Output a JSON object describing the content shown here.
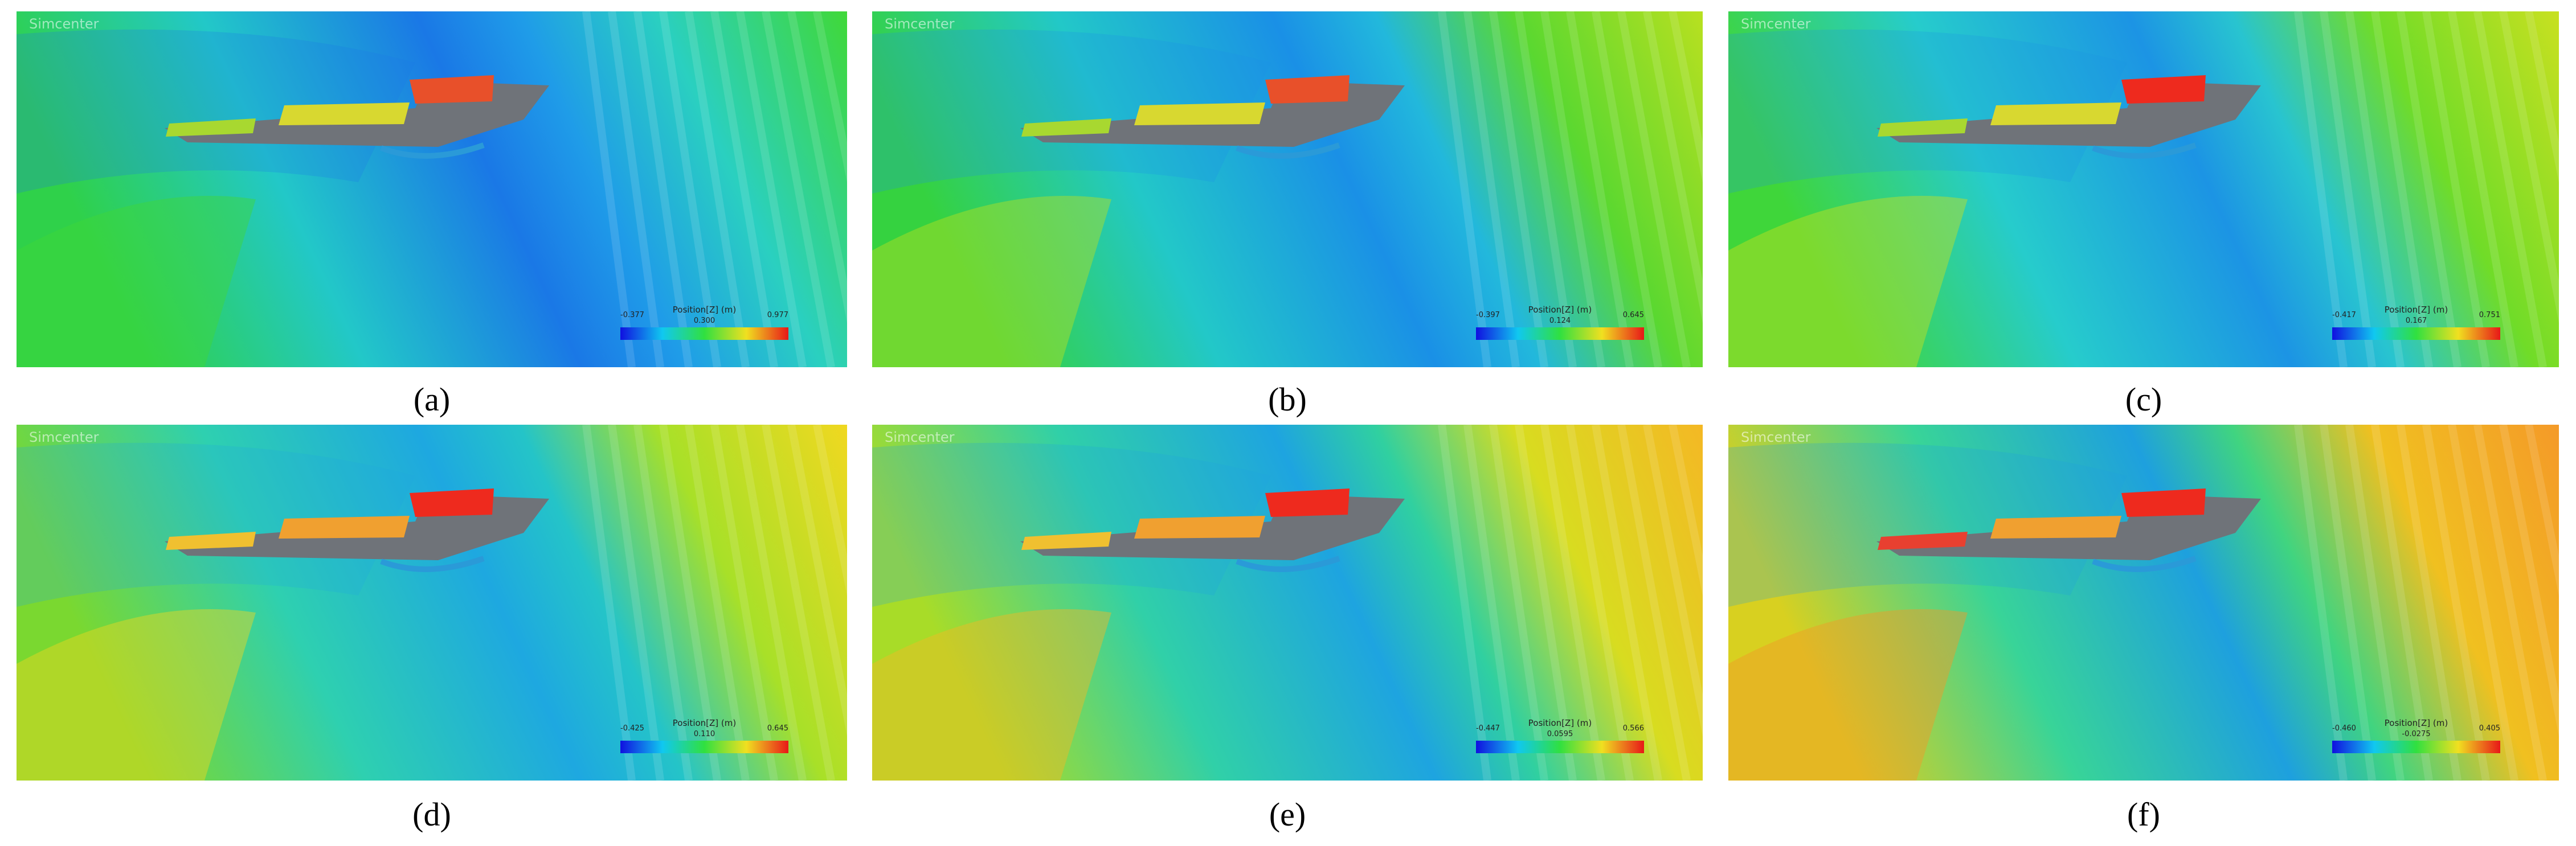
{
  "panels": [
    {
      "label": "(a)",
      "watermark": "Simcenter",
      "colorbar": {
        "title": "Position[Z] (m)",
        "min": "-0.377",
        "mid": "0.300",
        "max": "0.977"
      }
    },
    {
      "label": "(b)",
      "watermark": "Simcenter",
      "colorbar": {
        "title": "Position[Z] (m)",
        "min": "-0.397",
        "mid": "0.124",
        "max": "0.645"
      }
    },
    {
      "label": "(c)",
      "watermark": "Simcenter",
      "colorbar": {
        "title": "Position[Z] (m)",
        "min": "-0.417",
        "mid": "0.167",
        "max": "0.751"
      }
    },
    {
      "label": "(d)",
      "watermark": "Simcenter",
      "colorbar": {
        "title": "Position[Z] (m)",
        "min": "-0.425",
        "mid": "0.110",
        "max": "0.645"
      }
    },
    {
      "label": "(e)",
      "watermark": "Simcenter",
      "colorbar": {
        "title": "Position[Z] (m)",
        "min": "-0.447",
        "mid": "0.0595",
        "max": "0.566"
      }
    },
    {
      "label": "(f)",
      "watermark": "Simcenter",
      "colorbar": {
        "title": "Position[Z] (m)",
        "min": "-0.460",
        "mid": "-0.0275",
        "max": "0.405"
      }
    }
  ]
}
